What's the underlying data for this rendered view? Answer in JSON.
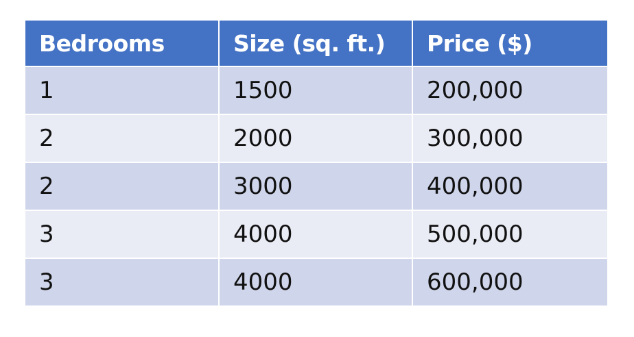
{
  "table": {
    "headers": [
      "Bedrooms",
      "Size (sq. ft.)",
      "Price ($)"
    ],
    "rows": [
      [
        "1",
        "1500",
        "200,000"
      ],
      [
        "2",
        "2000",
        "300,000"
      ],
      [
        "2",
        "3000",
        "400,000"
      ],
      [
        "3",
        "4000",
        "500,000"
      ],
      [
        "3",
        "4000",
        "600,000"
      ]
    ],
    "colors": {
      "header_bg": "#4472c4",
      "header_text": "#ffffff",
      "row_band_dark": "#cfd5ea",
      "row_band_light": "#e9ebf5"
    }
  }
}
